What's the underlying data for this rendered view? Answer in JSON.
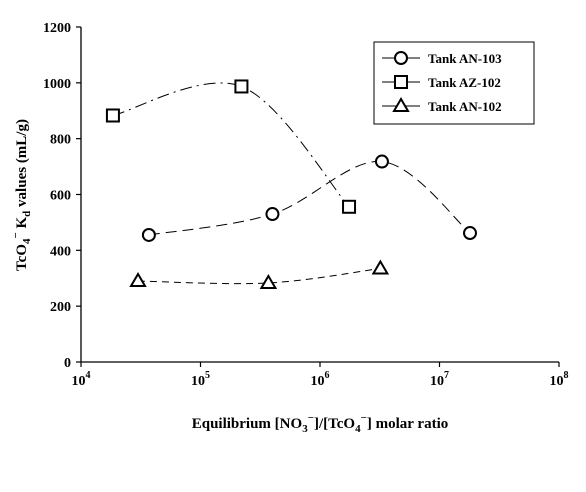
{
  "chart_data": {
    "type": "scatter",
    "x_scale": "log",
    "xlim": [
      10000,
      100000000
    ],
    "ylim": [
      0,
      1200
    ],
    "grid": false,
    "legend_position": "top-right",
    "xlabel_parts": [
      "Equilibrium [NO",
      "3",
      "−",
      "]/[TcO",
      "4",
      "−",
      "] molar ratio"
    ],
    "ylabel_parts": [
      "TcO",
      "4",
      "−",
      "  K",
      "d",
      " values (mL/g)"
    ],
    "x_ticks": [
      {
        "base": "10",
        "exp": "4",
        "value": 10000
      },
      {
        "base": "10",
        "exp": "5",
        "value": 100000
      },
      {
        "base": "10",
        "exp": "6",
        "value": 1000000
      },
      {
        "base": "10",
        "exp": "7",
        "value": 10000000
      },
      {
        "base": "10",
        "exp": "8",
        "value": 100000000
      }
    ],
    "y_ticks": [
      "0",
      "200",
      "400",
      "600",
      "800",
      "1000",
      "1200"
    ],
    "series": [
      {
        "name": "Tank AN-103",
        "marker": "circle",
        "line_style": "long-dash",
        "points": [
          {
            "x": 37000,
            "y": 455
          },
          {
            "x": 400000,
            "y": 530
          },
          {
            "x": 3300000,
            "y": 718
          },
          {
            "x": 18000000,
            "y": 462
          }
        ]
      },
      {
        "name": "Tank AZ-102",
        "marker": "square",
        "line_style": "dash-dot",
        "points": [
          {
            "x": 18500,
            "y": 883
          },
          {
            "x": 220000,
            "y": 987
          },
          {
            "x": 1750000,
            "y": 556
          }
        ]
      },
      {
        "name": "Tank AN-102",
        "marker": "triangle",
        "line_style": "short-dash",
        "points": [
          {
            "x": 30000,
            "y": 290
          },
          {
            "x": 370000,
            "y": 283
          },
          {
            "x": 3200000,
            "y": 335
          }
        ]
      }
    ]
  }
}
